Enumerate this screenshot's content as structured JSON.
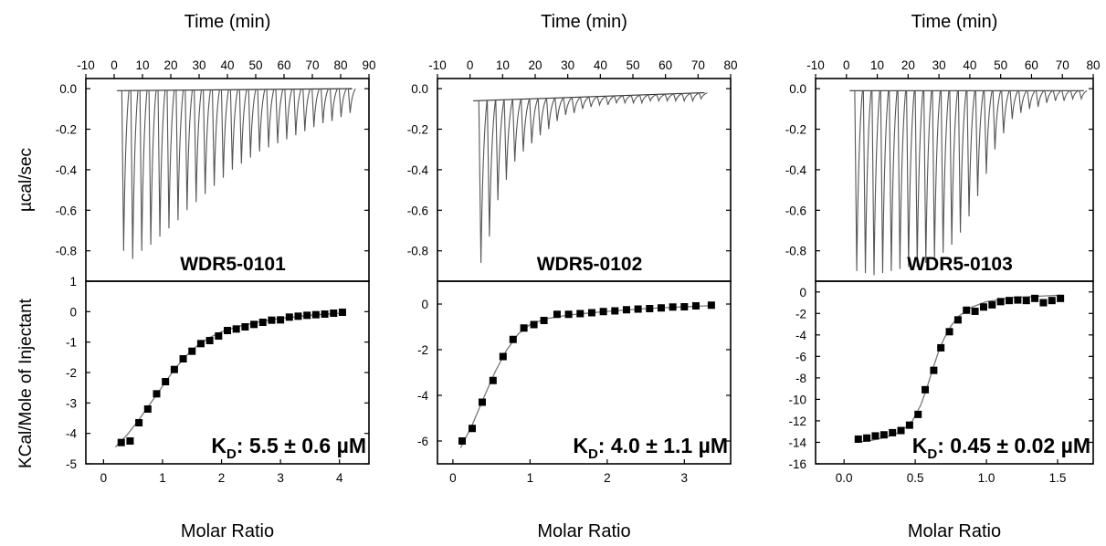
{
  "figure": {
    "top_axis_label": "Time (min)",
    "bottom_axis_label": "Molar Ratio",
    "top_ylabel": "µcal/sec",
    "bottom_ylabel": "KCal/Mole of Injectant"
  },
  "chart_data": [
    {
      "type": "line",
      "name": "WDR5-0101",
      "label": "WDR5-0101",
      "kd_prefix": "K",
      "kd_subscript": "D",
      "kd_value": ": 5.5 ± 0.6 µM",
      "raw": {
        "xlabel": "Time (min)",
        "ylabel": "µcal/sec",
        "xlim": [
          -10,
          90
        ],
        "ylim": [
          -0.95,
          0.05
        ],
        "x_ticks": [
          -10,
          0,
          10,
          20,
          30,
          40,
          50,
          60,
          70,
          80,
          90
        ],
        "y_ticks": [
          0.0,
          -0.2,
          -0.4,
          -0.6,
          -0.8
        ],
        "y_tick_labels": [
          "0.0",
          "-0.2",
          "-0.4",
          "-0.6",
          "-0.8"
        ],
        "baseline": [
          [
            1,
            -0.01
          ],
          [
            84,
            0.0
          ]
        ],
        "injection_times": [
          3,
          6.2,
          9.4,
          12.6,
          15.8,
          19,
          22.2,
          25.4,
          28.6,
          31.8,
          35,
          38.2,
          41.4,
          44.6,
          47.8,
          51,
          54.2,
          57.4,
          60.6,
          63.8,
          67,
          70.2,
          73.4,
          76.6,
          79.8,
          83
        ],
        "peak_depths": [
          -0.8,
          -0.84,
          -0.8,
          -0.77,
          -0.73,
          -0.69,
          -0.65,
          -0.6,
          -0.56,
          -0.52,
          -0.48,
          -0.44,
          -0.4,
          -0.37,
          -0.34,
          -0.31,
          -0.29,
          -0.27,
          -0.25,
          -0.23,
          -0.21,
          -0.19,
          -0.17,
          -0.16,
          -0.14,
          -0.12
        ]
      },
      "binding": {
        "xlabel": "Molar Ratio",
        "ylabel": "KCal/Mole of Injectant",
        "xlim": [
          -0.3,
          4.5
        ],
        "ylim": [
          -5,
          1
        ],
        "x_ticks": [
          0,
          1,
          2,
          3,
          4
        ],
        "x_tick_labels": [
          "0",
          "1",
          "2",
          "3",
          "4"
        ],
        "y_ticks": [
          1,
          0,
          -1,
          -2,
          -3,
          -4,
          -5
        ],
        "y_tick_labels": [
          "1",
          "0",
          "-1",
          "-2",
          "-3",
          "-4",
          "-5"
        ],
        "points": [
          [
            0.3,
            -4.3
          ],
          [
            0.45,
            -4.25
          ],
          [
            0.6,
            -3.65
          ],
          [
            0.75,
            -3.2
          ],
          [
            0.9,
            -2.7
          ],
          [
            1.05,
            -2.3
          ],
          [
            1.2,
            -1.9
          ],
          [
            1.35,
            -1.55
          ],
          [
            1.5,
            -1.3
          ],
          [
            1.65,
            -1.05
          ],
          [
            1.8,
            -0.95
          ],
          [
            1.95,
            -0.8
          ],
          [
            2.1,
            -0.62
          ],
          [
            2.25,
            -0.57
          ],
          [
            2.4,
            -0.5
          ],
          [
            2.55,
            -0.42
          ],
          [
            2.7,
            -0.35
          ],
          [
            2.85,
            -0.28
          ],
          [
            3.0,
            -0.27
          ],
          [
            3.15,
            -0.18
          ],
          [
            3.3,
            -0.15
          ],
          [
            3.45,
            -0.12
          ],
          [
            3.6,
            -0.1
          ],
          [
            3.75,
            -0.08
          ],
          [
            3.9,
            -0.05
          ],
          [
            4.05,
            -0.02
          ]
        ],
        "fit": [
          [
            0.2,
            -4.45
          ],
          [
            0.4,
            -4.05
          ],
          [
            0.6,
            -3.55
          ],
          [
            0.8,
            -3.0
          ],
          [
            1.0,
            -2.45
          ],
          [
            1.2,
            -1.9
          ],
          [
            1.4,
            -1.45
          ],
          [
            1.6,
            -1.1
          ],
          [
            1.8,
            -0.85
          ],
          [
            2.0,
            -0.66
          ],
          [
            2.3,
            -0.48
          ],
          [
            2.6,
            -0.35
          ],
          [
            3.0,
            -0.22
          ],
          [
            3.5,
            -0.12
          ],
          [
            4.05,
            -0.05
          ]
        ]
      }
    },
    {
      "type": "line",
      "name": "WDR5-0102",
      "label": "WDR5-0102",
      "kd_prefix": "K",
      "kd_subscript": "D",
      "kd_value": ": 4.0 ± 1.1 µM",
      "raw": {
        "xlabel": "Time (min)",
        "ylabel": "µcal/sec",
        "xlim": [
          -10,
          80
        ],
        "ylim": [
          -0.95,
          0.05
        ],
        "x_ticks": [
          -10,
          0,
          10,
          20,
          30,
          40,
          50,
          60,
          70,
          80
        ],
        "y_ticks": [
          0.0,
          -0.2,
          -0.4,
          -0.6,
          -0.8
        ],
        "y_tick_labels": [
          "0.0",
          "-0.2",
          "-0.4",
          "-0.6",
          "-0.8"
        ],
        "baseline": [
          [
            1,
            -0.06
          ],
          [
            72,
            -0.02
          ]
        ],
        "injection_times": [
          3,
          5.6,
          8.2,
          10.8,
          13.4,
          16,
          18.6,
          21.2,
          23.8,
          26.4,
          29,
          31.6,
          34.2,
          36.8,
          39.4,
          42,
          44.6,
          47.2,
          49.8,
          52.4,
          55,
          57.6,
          60.2,
          62.8,
          65.4,
          68,
          70.6
        ],
        "peak_depths": [
          -0.86,
          -0.73,
          -0.55,
          -0.45,
          -0.36,
          -0.31,
          -0.27,
          -0.23,
          -0.2,
          -0.16,
          -0.13,
          -0.12,
          -0.1,
          -0.09,
          -0.08,
          -0.08,
          -0.07,
          -0.07,
          -0.07,
          -0.07,
          -0.06,
          -0.06,
          -0.06,
          -0.06,
          -0.06,
          -0.06,
          -0.05
        ]
      },
      "binding": {
        "xlabel": "Molar Ratio",
        "ylabel": "",
        "xlim": [
          -0.2,
          3.6
        ],
        "ylim": [
          -7,
          1
        ],
        "x_ticks": [
          0,
          1,
          2,
          3
        ],
        "x_tick_labels": [
          "0",
          "1",
          "2",
          "3"
        ],
        "y_ticks": [
          0,
          -2,
          -4,
          -6
        ],
        "y_tick_labels": [
          "0",
          "-2",
          "-4",
          "-6"
        ],
        "points": [
          [
            0.12,
            -6.0
          ],
          [
            0.25,
            -5.45
          ],
          [
            0.38,
            -4.3
          ],
          [
            0.52,
            -3.35
          ],
          [
            0.65,
            -2.3
          ],
          [
            0.78,
            -1.55
          ],
          [
            0.92,
            -1.05
          ],
          [
            1.05,
            -0.9
          ],
          [
            1.18,
            -0.72
          ],
          [
            1.35,
            -0.45
          ],
          [
            1.5,
            -0.45
          ],
          [
            1.65,
            -0.42
          ],
          [
            1.8,
            -0.38
          ],
          [
            1.95,
            -0.33
          ],
          [
            2.1,
            -0.3
          ],
          [
            2.25,
            -0.25
          ],
          [
            2.4,
            -0.22
          ],
          [
            2.55,
            -0.2
          ],
          [
            2.7,
            -0.17
          ],
          [
            2.85,
            -0.13
          ],
          [
            3.0,
            -0.12
          ],
          [
            3.15,
            -0.08
          ],
          [
            3.35,
            -0.05
          ]
        ],
        "fit": [
          [
            0.1,
            -6.3
          ],
          [
            0.25,
            -5.3
          ],
          [
            0.4,
            -4.1
          ],
          [
            0.55,
            -2.95
          ],
          [
            0.7,
            -2.0
          ],
          [
            0.85,
            -1.3
          ],
          [
            1.0,
            -0.9
          ],
          [
            1.2,
            -0.65
          ],
          [
            1.5,
            -0.48
          ],
          [
            2.0,
            -0.32
          ],
          [
            2.5,
            -0.2
          ],
          [
            3.0,
            -0.12
          ],
          [
            3.35,
            -0.07
          ]
        ]
      }
    },
    {
      "type": "line",
      "name": "WDR5-0103",
      "label": "WDR5-0103",
      "kd_prefix": "K",
      "kd_subscript": "D",
      "kd_value": ": 0.45 ± 0.02 µM",
      "raw": {
        "xlabel": "Time (min)",
        "ylabel": "µcal/sec",
        "xlim": [
          -10,
          80
        ],
        "ylim": [
          -0.95,
          0.05
        ],
        "x_ticks": [
          -10,
          0,
          10,
          20,
          30,
          40,
          50,
          60,
          70,
          80
        ],
        "y_ticks": [
          0.0,
          -0.2,
          -0.4,
          -0.6,
          -0.8
        ],
        "y_tick_labels": [
          "0.0",
          "-0.2",
          "-0.4",
          "-0.6",
          "-0.8"
        ],
        "baseline": [
          [
            1,
            -0.01
          ],
          [
            77,
            -0.01
          ]
        ],
        "injection_times": [
          3,
          5.8,
          8.6,
          11.4,
          14.2,
          17,
          19.8,
          22.6,
          25.4,
          28.2,
          31,
          33.8,
          36.6,
          39.4,
          42.2,
          45,
          47.8,
          50.6,
          53.4,
          56.2,
          59,
          61.8,
          64.6,
          67.4,
          70.2,
          73,
          75.8
        ],
        "peak_depths": [
          -0.9,
          -0.91,
          -0.92,
          -0.91,
          -0.9,
          -0.89,
          -0.88,
          -0.88,
          -0.86,
          -0.84,
          -0.81,
          -0.77,
          -0.71,
          -0.63,
          -0.53,
          -0.42,
          -0.3,
          -0.22,
          -0.15,
          -0.12,
          -0.1,
          -0.09,
          -0.07,
          -0.06,
          -0.06,
          -0.05,
          -0.05
        ]
      },
      "binding": {
        "xlabel": "Molar Ratio",
        "ylabel": "",
        "xlim": [
          -0.2,
          1.75
        ],
        "ylim": [
          -16,
          1
        ],
        "x_ticks": [
          0.0,
          0.5,
          1.0,
          1.5
        ],
        "x_tick_labels": [
          "0.0",
          "0.5",
          "1.0",
          "1.5"
        ],
        "y_ticks": [
          0,
          -2,
          -4,
          -6,
          -8,
          -10,
          -12,
          -14,
          -16
        ],
        "y_tick_labels": [
          "0",
          "-2",
          "-4",
          "-6",
          "-8",
          "-10",
          "-12",
          "-14",
          "-16"
        ],
        "points": [
          [
            0.1,
            -13.7
          ],
          [
            0.16,
            -13.6
          ],
          [
            0.22,
            -13.4
          ],
          [
            0.28,
            -13.3
          ],
          [
            0.34,
            -13.1
          ],
          [
            0.4,
            -12.9
          ],
          [
            0.46,
            -12.4
          ],
          [
            0.52,
            -11.4
          ],
          [
            0.57,
            -9.1
          ],
          [
            0.63,
            -7.3
          ],
          [
            0.68,
            -5.2
          ],
          [
            0.74,
            -3.7
          ],
          [
            0.8,
            -2.6
          ],
          [
            0.86,
            -1.7
          ],
          [
            0.92,
            -1.8
          ],
          [
            0.98,
            -1.4
          ],
          [
            1.04,
            -1.2
          ],
          [
            1.1,
            -0.9
          ],
          [
            1.16,
            -0.8
          ],
          [
            1.22,
            -0.75
          ],
          [
            1.28,
            -0.8
          ],
          [
            1.34,
            -0.6
          ],
          [
            1.4,
            -1.0
          ],
          [
            1.46,
            -0.8
          ],
          [
            1.52,
            -0.6
          ]
        ],
        "fit": [
          [
            0.08,
            -14.0
          ],
          [
            0.2,
            -13.8
          ],
          [
            0.3,
            -13.5
          ],
          [
            0.4,
            -13.0
          ],
          [
            0.48,
            -12.0
          ],
          [
            0.54,
            -10.5
          ],
          [
            0.58,
            -9.0
          ],
          [
            0.62,
            -7.3
          ],
          [
            0.66,
            -5.7
          ],
          [
            0.7,
            -4.4
          ],
          [
            0.75,
            -3.2
          ],
          [
            0.8,
            -2.3
          ],
          [
            0.9,
            -1.4
          ],
          [
            1.0,
            -0.9
          ],
          [
            1.2,
            -0.5
          ],
          [
            1.52,
            -0.3
          ]
        ]
      }
    }
  ]
}
